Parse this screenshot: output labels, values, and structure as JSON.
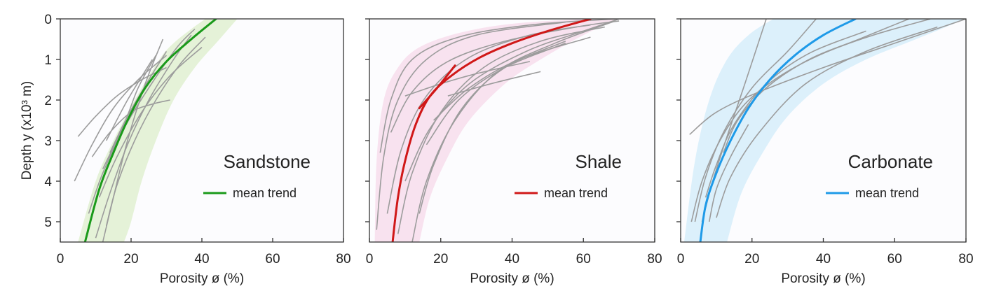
{
  "chart_data": [
    {
      "type": "line",
      "title": "Sandstone",
      "xlabel": "Porosity ø (%)",
      "ylabel": "Depth y (x10³ m)",
      "xlim": [
        0,
        80
      ],
      "ylim": [
        5.5,
        0
      ],
      "x_ticks": [
        "0",
        "20",
        "40",
        "60",
        "80"
      ],
      "y_ticks": [
        "0",
        "1",
        "2",
        "3",
        "4",
        "5"
      ],
      "legend": [
        "mean trend"
      ],
      "legend_position": "right",
      "colors": {
        "mean": "#1a9a1a",
        "band": "#e5f2d8",
        "samples": "#9c9c9c"
      },
      "envelope": {
        "left_x": [
          5,
          10,
          15,
          21,
          28,
          32,
          37,
          41
        ],
        "left_y": [
          5.5,
          4,
          3,
          2,
          1,
          0.6,
          0.25,
          0
        ],
        "right_x": [
          50,
          45,
          38,
          32,
          27,
          23,
          20,
          18
        ],
        "right_y": [
          0,
          0.5,
          1.2,
          2,
          3,
          4,
          5,
          5.5
        ]
      },
      "series": [
        {
          "name": "mean trend",
          "x": [
            7,
            11,
            15,
            19,
            24,
            30,
            37,
            44
          ],
          "y": [
            5.5,
            4.2,
            3.3,
            2.5,
            1.7,
            1.05,
            0.5,
            0
          ]
        }
      ],
      "samples": [
        {
          "x": [
            5,
            10,
            16,
            23,
            30
          ],
          "y": [
            2.9,
            2.4,
            1.9,
            1.5,
            1.2
          ]
        },
        {
          "x": [
            4,
            9,
            15,
            22,
            30
          ],
          "y": [
            4.0,
            3.1,
            2.2,
            1.5,
            0.9
          ]
        },
        {
          "x": [
            8,
            12,
            18,
            25,
            33,
            38
          ],
          "y": [
            4.8,
            3.8,
            2.7,
            1.7,
            0.7,
            0.25
          ]
        },
        {
          "x": [
            10,
            14,
            19,
            25,
            32,
            37
          ],
          "y": [
            5.4,
            4.3,
            3.1,
            2.0,
            1.0,
            0.4
          ]
        },
        {
          "x": [
            12,
            15,
            19,
            24,
            29
          ],
          "y": [
            5.5,
            4.4,
            3.0,
            1.6,
            0.5
          ]
        },
        {
          "x": [
            13,
            16,
            21,
            27,
            34,
            41
          ],
          "y": [
            5.1,
            4.1,
            3.0,
            2.0,
            1.1,
            0.45
          ]
        },
        {
          "x": [
            11,
            16,
            23,
            31,
            40
          ],
          "y": [
            4.4,
            3.4,
            2.3,
            1.4,
            0.7
          ]
        },
        {
          "x": [
            14,
            19,
            25,
            30
          ],
          "y": [
            3.3,
            2.4,
            1.5,
            0.8
          ]
        },
        {
          "x": [
            12,
            18,
            22,
            27
          ],
          "y": [
            3.7,
            2.6,
            1.7,
            0.9
          ]
        },
        {
          "x": [
            9,
            14,
            20,
            26,
            31
          ],
          "y": [
            3.4,
            2.8,
            2.3,
            2.1,
            2.0
          ]
        },
        {
          "x": [
            13,
            19,
            26
          ],
          "y": [
            3.0,
            2.0,
            1.0
          ]
        }
      ]
    },
    {
      "type": "line",
      "title": "Shale",
      "xlabel": "Porosity ø (%)",
      "ylabel": "",
      "xlim": [
        0,
        80
      ],
      "ylim": [
        5.5,
        0
      ],
      "x_ticks": [
        "0",
        "20",
        "40",
        "60",
        "80"
      ],
      "y_ticks": [],
      "legend": [
        "mean trend"
      ],
      "legend_position": "right",
      "colors": {
        "mean": "#d01818",
        "band": "#f8e2ef",
        "samples": "#9c9c9c"
      },
      "envelope": {
        "left_x": [
          1.5,
          2,
          4,
          8,
          14,
          25,
          40,
          60
        ],
        "left_y": [
          5.5,
          3.5,
          2,
          1.2,
          0.7,
          0.35,
          0.12,
          0
        ],
        "right_x": [
          70,
          60,
          48,
          38,
          28,
          22,
          17,
          14
        ],
        "right_y": [
          0,
          0.4,
          1,
          1.6,
          2.5,
          3.4,
          4.4,
          5.5
        ]
      },
      "series": [
        {
          "name": "mean trend",
          "x": [
            6.5,
            8,
            10,
            13,
            17,
            23,
            31,
            40,
            50,
            62
          ],
          "y": [
            5.5,
            4.4,
            3.5,
            2.6,
            1.9,
            1.4,
            0.95,
            0.6,
            0.3,
            0
          ]
        },
        {
          "name": "",
          "x": [
            14,
            19,
            24
          ],
          "y": [
            2.2,
            1.7,
            1.15
          ]
        }
      ],
      "samples": [
        {
          "x": [
            3,
            6,
            12,
            25,
            45,
            69
          ],
          "y": [
            3.3,
            2.0,
            1.0,
            0.45,
            0.15,
            0
          ]
        },
        {
          "x": [
            2,
            4,
            8,
            16,
            30,
            55
          ],
          "y": [
            5.2,
            3.4,
            2.0,
            1.0,
            0.4,
            0.08
          ]
        },
        {
          "x": [
            5,
            9,
            16,
            28,
            45,
            62
          ],
          "y": [
            4.8,
            3.2,
            1.9,
            0.95,
            0.4,
            0.15
          ]
        },
        {
          "x": [
            8,
            12,
            20,
            32,
            48,
            66
          ],
          "y": [
            5.3,
            3.8,
            2.3,
            1.2,
            0.55,
            0.2
          ]
        },
        {
          "x": [
            12,
            16,
            24,
            36,
            52,
            69
          ],
          "y": [
            5.5,
            4.0,
            2.5,
            1.3,
            0.6,
            0.05
          ]
        },
        {
          "x": [
            14,
            18,
            26,
            38,
            55
          ],
          "y": [
            4.8,
            3.6,
            2.2,
            1.2,
            0.55
          ]
        },
        {
          "x": [
            10,
            17,
            28,
            44,
            60,
            70
          ],
          "y": [
            4.0,
            2.7,
            1.6,
            0.8,
            0.3,
            0
          ]
        },
        {
          "x": [
            16,
            25,
            38,
            55
          ],
          "y": [
            3.1,
            2.0,
            1.2,
            0.6
          ]
        },
        {
          "x": [
            18,
            28,
            42,
            62
          ],
          "y": [
            2.5,
            1.7,
            1.0,
            0.45
          ]
        },
        {
          "x": [
            10,
            20,
            30,
            45
          ],
          "y": [
            1.9,
            1.6,
            1.35,
            1.05
          ]
        },
        {
          "x": [
            22,
            34,
            48
          ],
          "y": [
            1.9,
            1.6,
            1.3
          ]
        },
        {
          "x": [
            6,
            12,
            22,
            38,
            58,
            70
          ],
          "y": [
            2.8,
            1.8,
            1.05,
            0.55,
            0.2,
            0.05
          ]
        }
      ]
    },
    {
      "type": "line",
      "title": "Carbonate",
      "xlabel": "Porosity ø (%)",
      "ylabel": "",
      "xlim": [
        0,
        80
      ],
      "ylim": [
        5.5,
        0
      ],
      "x_ticks": [
        "0",
        "20",
        "40",
        "60",
        "80"
      ],
      "y_ticks": [],
      "legend": [
        "mean trend"
      ],
      "legend_position": "right",
      "colors": {
        "mean": "#1e9ae8",
        "band": "#dcf0fb",
        "samples": "#9c9c9c"
      },
      "envelope": {
        "left_x": [
          1,
          4,
          8,
          13,
          19,
          26
        ],
        "left_y": [
          5.5,
          3.5,
          2,
          1,
          0.4,
          0
        ],
        "right_x": [
          80,
          66,
          52,
          40,
          30,
          23,
          17,
          13
        ],
        "right_y": [
          0,
          0.5,
          1,
          1.6,
          2.4,
          3.3,
          4.3,
          5.5
        ]
      },
      "series": [
        {
          "name": "mean trend",
          "x": [
            5.5,
            7,
            10,
            14,
            19,
            25,
            32,
            40,
            49
          ],
          "y": [
            5.5,
            4.6,
            3.8,
            3.0,
            2.2,
            1.5,
            0.9,
            0.4,
            0
          ]
        }
      ],
      "samples": [
        {
          "x": [
            2.5,
            10,
            22,
            40,
            60,
            80
          ],
          "y": [
            2.85,
            2.3,
            1.8,
            1.2,
            0.6,
            0
          ]
        },
        {
          "x": [
            3,
            6,
            11,
            18,
            28,
            40,
            54,
            70
          ],
          "y": [
            5.0,
            4.0,
            3.0,
            2.1,
            1.4,
            0.85,
            0.4,
            0
          ]
        },
        {
          "x": [
            4,
            7,
            12,
            20,
            30,
            38
          ],
          "y": [
            5.0,
            3.9,
            2.8,
            1.7,
            0.8,
            0
          ]
        },
        {
          "x": [
            6,
            9,
            13,
            18,
            24
          ],
          "y": [
            5.0,
            4.0,
            2.9,
            1.6,
            0
          ]
        },
        {
          "x": [
            8,
            10,
            14,
            19
          ],
          "y": [
            5.0,
            4.2,
            3.4,
            2.6
          ]
        },
        {
          "x": [
            10,
            14,
            22,
            35,
            52,
            72
          ],
          "y": [
            4.9,
            3.9,
            2.8,
            1.6,
            0.8,
            0.2
          ]
        },
        {
          "x": [
            12,
            16,
            24,
            36,
            50,
            64
          ],
          "y": [
            3.3,
            2.5,
            1.7,
            1.0,
            0.5,
            0
          ]
        },
        {
          "x": [
            7,
            10,
            15,
            24,
            36,
            52
          ],
          "y": [
            4.4,
            3.6,
            2.6,
            1.6,
            0.85,
            0.3
          ]
        }
      ]
    }
  ]
}
